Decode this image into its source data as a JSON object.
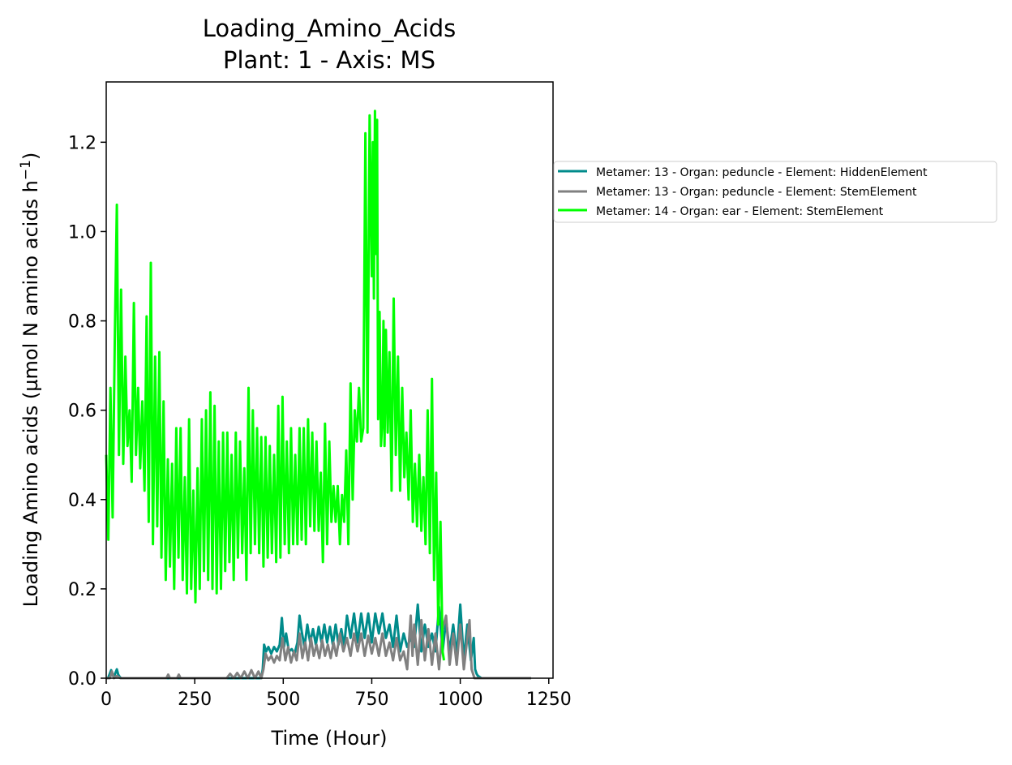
{
  "chart_data": {
    "type": "line",
    "title": "Loading_Amino_Acids",
    "subtitle": "Plant: 1 - Axis: MS",
    "xlabel": "Time (Hour)",
    "ylabel": "Loading Amino acids (µmol N amino acids h",
    "ylabel_superscript": "−1",
    "ylabel_suffix": ")",
    "xlim": [
      0,
      1262
    ],
    "ylim": [
      0,
      1.335
    ],
    "xticks": [
      0,
      250,
      500,
      750,
      1000,
      1250
    ],
    "xtick_labels": [
      "0",
      "250",
      "500",
      "750",
      "1000",
      "1250"
    ],
    "yticks": [
      0.0,
      0.2,
      0.4,
      0.6,
      0.8,
      1.0,
      1.2
    ],
    "ytick_labels": [
      "0.0",
      "0.2",
      "0.4",
      "0.6",
      "0.8",
      "1.0",
      "1.2"
    ],
    "grid": false,
    "legend_position": "outside-right",
    "series": [
      {
        "name": "Metamer: 13 - Organ: peduncle - Element: HiddenElement",
        "color": "#008b8b",
        "x": [
          0,
          5,
          10,
          14,
          18,
          22,
          26,
          30,
          34,
          38,
          42,
          46,
          50,
          60,
          80,
          100,
          200,
          300,
          400,
          420,
          438,
          442,
          446,
          452,
          458,
          466,
          474,
          482,
          490,
          496,
          502,
          508,
          516,
          524,
          532,
          540,
          546,
          552,
          560,
          568,
          576,
          584,
          592,
          600,
          608,
          616,
          624,
          632,
          640,
          648,
          656,
          664,
          672,
          680,
          690,
          700,
          710,
          720,
          730,
          740,
          750,
          760,
          770,
          780,
          790,
          800,
          810,
          820,
          830,
          840,
          850,
          860,
          870,
          880,
          890,
          900,
          910,
          920,
          930,
          940,
          950,
          960,
          970,
          980,
          990,
          1000,
          1010,
          1020,
          1030,
          1038,
          1042,
          1046,
          1050,
          1060,
          1080,
          1100,
          1130,
          1160,
          1180,
          1200
        ],
        "values": [
          0.0,
          0.0,
          0.01,
          0.018,
          0.006,
          0.004,
          0.012,
          0.02,
          0.008,
          0.003,
          0.0,
          0.0,
          0.0,
          0.0,
          0.0,
          0.0,
          0.0,
          0.0,
          0.0,
          0.0,
          0.0,
          0.02,
          0.075,
          0.06,
          0.07,
          0.055,
          0.07,
          0.06,
          0.075,
          0.135,
          0.07,
          0.1,
          0.06,
          0.065,
          0.055,
          0.08,
          0.14,
          0.105,
          0.07,
          0.12,
          0.08,
          0.11,
          0.075,
          0.115,
          0.08,
          0.12,
          0.08,
          0.115,
          0.075,
          0.12,
          0.075,
          0.11,
          0.07,
          0.14,
          0.09,
          0.145,
          0.08,
          0.145,
          0.09,
          0.145,
          0.08,
          0.145,
          0.1,
          0.145,
          0.09,
          0.12,
          0.07,
          0.14,
          0.06,
          0.1,
          0.07,
          0.09,
          0.07,
          0.165,
          0.06,
          0.12,
          0.07,
          0.1,
          0.06,
          0.16,
          0.06,
          0.13,
          0.06,
          0.12,
          0.05,
          0.165,
          0.04,
          0.12,
          0.04,
          0.09,
          0.02,
          0.01,
          0.005,
          0.0,
          0.0,
          0.0,
          0.0,
          0.0,
          0.0,
          0.0
        ]
      },
      {
        "name": "Metamer: 13 - Organ: peduncle - Element: StemElement",
        "color": "#808080",
        "x": [
          0,
          10,
          16,
          22,
          30,
          40,
          50,
          60,
          100,
          170,
          175,
          180,
          200,
          205,
          210,
          240,
          250,
          300,
          320,
          330,
          340,
          350,
          360,
          370,
          380,
          390,
          400,
          410,
          420,
          430,
          438,
          444,
          450,
          458,
          466,
          474,
          482,
          490,
          498,
          506,
          514,
          522,
          530,
          538,
          546,
          554,
          562,
          570,
          578,
          586,
          594,
          602,
          610,
          618,
          626,
          634,
          642,
          650,
          660,
          670,
          680,
          690,
          700,
          710,
          720,
          730,
          740,
          750,
          760,
          770,
          780,
          790,
          800,
          810,
          820,
          830,
          840,
          850,
          860,
          865,
          870,
          880,
          890,
          900,
          910,
          920,
          930,
          940,
          950,
          960,
          970,
          980,
          990,
          1000,
          1010,
          1020,
          1026,
          1032,
          1040,
          1060,
          1100,
          1140,
          1170,
          1200
        ],
        "values": [
          0.0,
          0.0,
          0.015,
          0.0,
          0.005,
          0.0,
          0.0,
          0.0,
          0.0,
          0.0,
          0.008,
          0.0,
          0.0,
          0.008,
          0.0,
          0.0,
          0.0,
          0.0,
          0.0,
          0.0,
          0.0,
          0.01,
          0.0,
          0.012,
          0.0,
          0.015,
          0.0,
          0.018,
          0.0,
          0.015,
          0.0,
          0.02,
          0.055,
          0.04,
          0.05,
          0.035,
          0.05,
          0.04,
          0.09,
          0.04,
          0.07,
          0.035,
          0.06,
          0.04,
          0.1,
          0.045,
          0.08,
          0.04,
          0.09,
          0.05,
          0.075,
          0.045,
          0.085,
          0.05,
          0.075,
          0.045,
          0.08,
          0.05,
          0.1,
          0.06,
          0.09,
          0.05,
          0.1,
          0.06,
          0.1,
          0.05,
          0.095,
          0.055,
          0.09,
          0.05,
          0.1,
          0.05,
          0.08,
          0.04,
          0.09,
          0.04,
          0.06,
          0.02,
          0.14,
          0.05,
          0.12,
          0.03,
          0.13,
          0.04,
          0.11,
          0.03,
          0.1,
          0.02,
          0.11,
          0.14,
          0.03,
          0.1,
          0.03,
          0.12,
          0.02,
          0.09,
          0.13,
          0.02,
          0.0,
          0.0,
          0.0,
          0.0,
          0.0,
          0.0
        ]
      },
      {
        "name": "Metamer: 14 - Organ: ear - Element: StemElement",
        "color": "#00ff00",
        "x": [
          0,
          6,
          12,
          18,
          24,
          30,
          36,
          42,
          48,
          54,
          60,
          66,
          72,
          78,
          84,
          90,
          96,
          102,
          108,
          114,
          120,
          126,
          132,
          138,
          144,
          150,
          156,
          162,
          168,
          174,
          180,
          186,
          192,
          198,
          204,
          210,
          216,
          222,
          228,
          234,
          240,
          246,
          252,
          258,
          264,
          270,
          276,
          282,
          288,
          294,
          300,
          306,
          312,
          318,
          324,
          330,
          336,
          342,
          348,
          354,
          360,
          366,
          372,
          378,
          384,
          390,
          396,
          402,
          408,
          414,
          420,
          426,
          432,
          438,
          444,
          450,
          456,
          462,
          468,
          474,
          480,
          486,
          492,
          498,
          504,
          510,
          516,
          522,
          528,
          534,
          540,
          546,
          552,
          558,
          564,
          570,
          576,
          582,
          588,
          594,
          600,
          606,
          612,
          618,
          624,
          630,
          636,
          642,
          648,
          654,
          660,
          666,
          672,
          678,
          684,
          690,
          696,
          702,
          708,
          714,
          720,
          726,
          732,
          738,
          744,
          750,
          753,
          756,
          759,
          762,
          765,
          768,
          772,
          776,
          780,
          783,
          786,
          790,
          795,
          800,
          806,
          812,
          818,
          824,
          830,
          836,
          842,
          848,
          854,
          860,
          866,
          872,
          878,
          884,
          890,
          896,
          902,
          908,
          914,
          920,
          926,
          932,
          938,
          944,
          950,
          954
        ],
        "values": [
          0.5,
          0.31,
          0.65,
          0.36,
          0.75,
          1.06,
          0.5,
          0.87,
          0.48,
          0.72,
          0.52,
          0.6,
          0.44,
          0.84,
          0.5,
          0.65,
          0.47,
          0.62,
          0.42,
          0.81,
          0.35,
          0.93,
          0.3,
          0.72,
          0.34,
          0.73,
          0.27,
          0.62,
          0.22,
          0.49,
          0.25,
          0.48,
          0.2,
          0.56,
          0.27,
          0.56,
          0.22,
          0.45,
          0.19,
          0.58,
          0.2,
          0.42,
          0.17,
          0.47,
          0.2,
          0.58,
          0.24,
          0.6,
          0.22,
          0.64,
          0.2,
          0.61,
          0.19,
          0.53,
          0.2,
          0.55,
          0.24,
          0.55,
          0.26,
          0.5,
          0.22,
          0.55,
          0.27,
          0.53,
          0.28,
          0.47,
          0.22,
          0.65,
          0.28,
          0.6,
          0.3,
          0.56,
          0.28,
          0.54,
          0.25,
          0.54,
          0.27,
          0.52,
          0.28,
          0.5,
          0.26,
          0.61,
          0.27,
          0.63,
          0.3,
          0.53,
          0.28,
          0.56,
          0.3,
          0.5,
          0.3,
          0.56,
          0.31,
          0.56,
          0.3,
          0.58,
          0.34,
          0.55,
          0.33,
          0.53,
          0.33,
          0.46,
          0.26,
          0.57,
          0.3,
          0.53,
          0.35,
          0.43,
          0.35,
          0.43,
          0.3,
          0.41,
          0.35,
          0.51,
          0.3,
          0.66,
          0.4,
          0.6,
          0.53,
          0.65,
          0.53,
          0.56,
          1.22,
          0.55,
          1.26,
          0.9,
          1.2,
          0.85,
          1.27,
          0.95,
          1.25,
          0.58,
          0.82,
          0.52,
          0.58,
          0.8,
          0.52,
          0.78,
          0.55,
          0.73,
          0.42,
          0.85,
          0.5,
          0.72,
          0.42,
          0.65,
          0.45,
          0.55,
          0.4,
          0.6,
          0.35,
          0.48,
          0.34,
          0.5,
          0.33,
          0.45,
          0.3,
          0.6,
          0.28,
          0.67,
          0.22,
          0.46,
          0.12,
          0.35,
          0.06,
          0.04
        ]
      }
    ]
  }
}
